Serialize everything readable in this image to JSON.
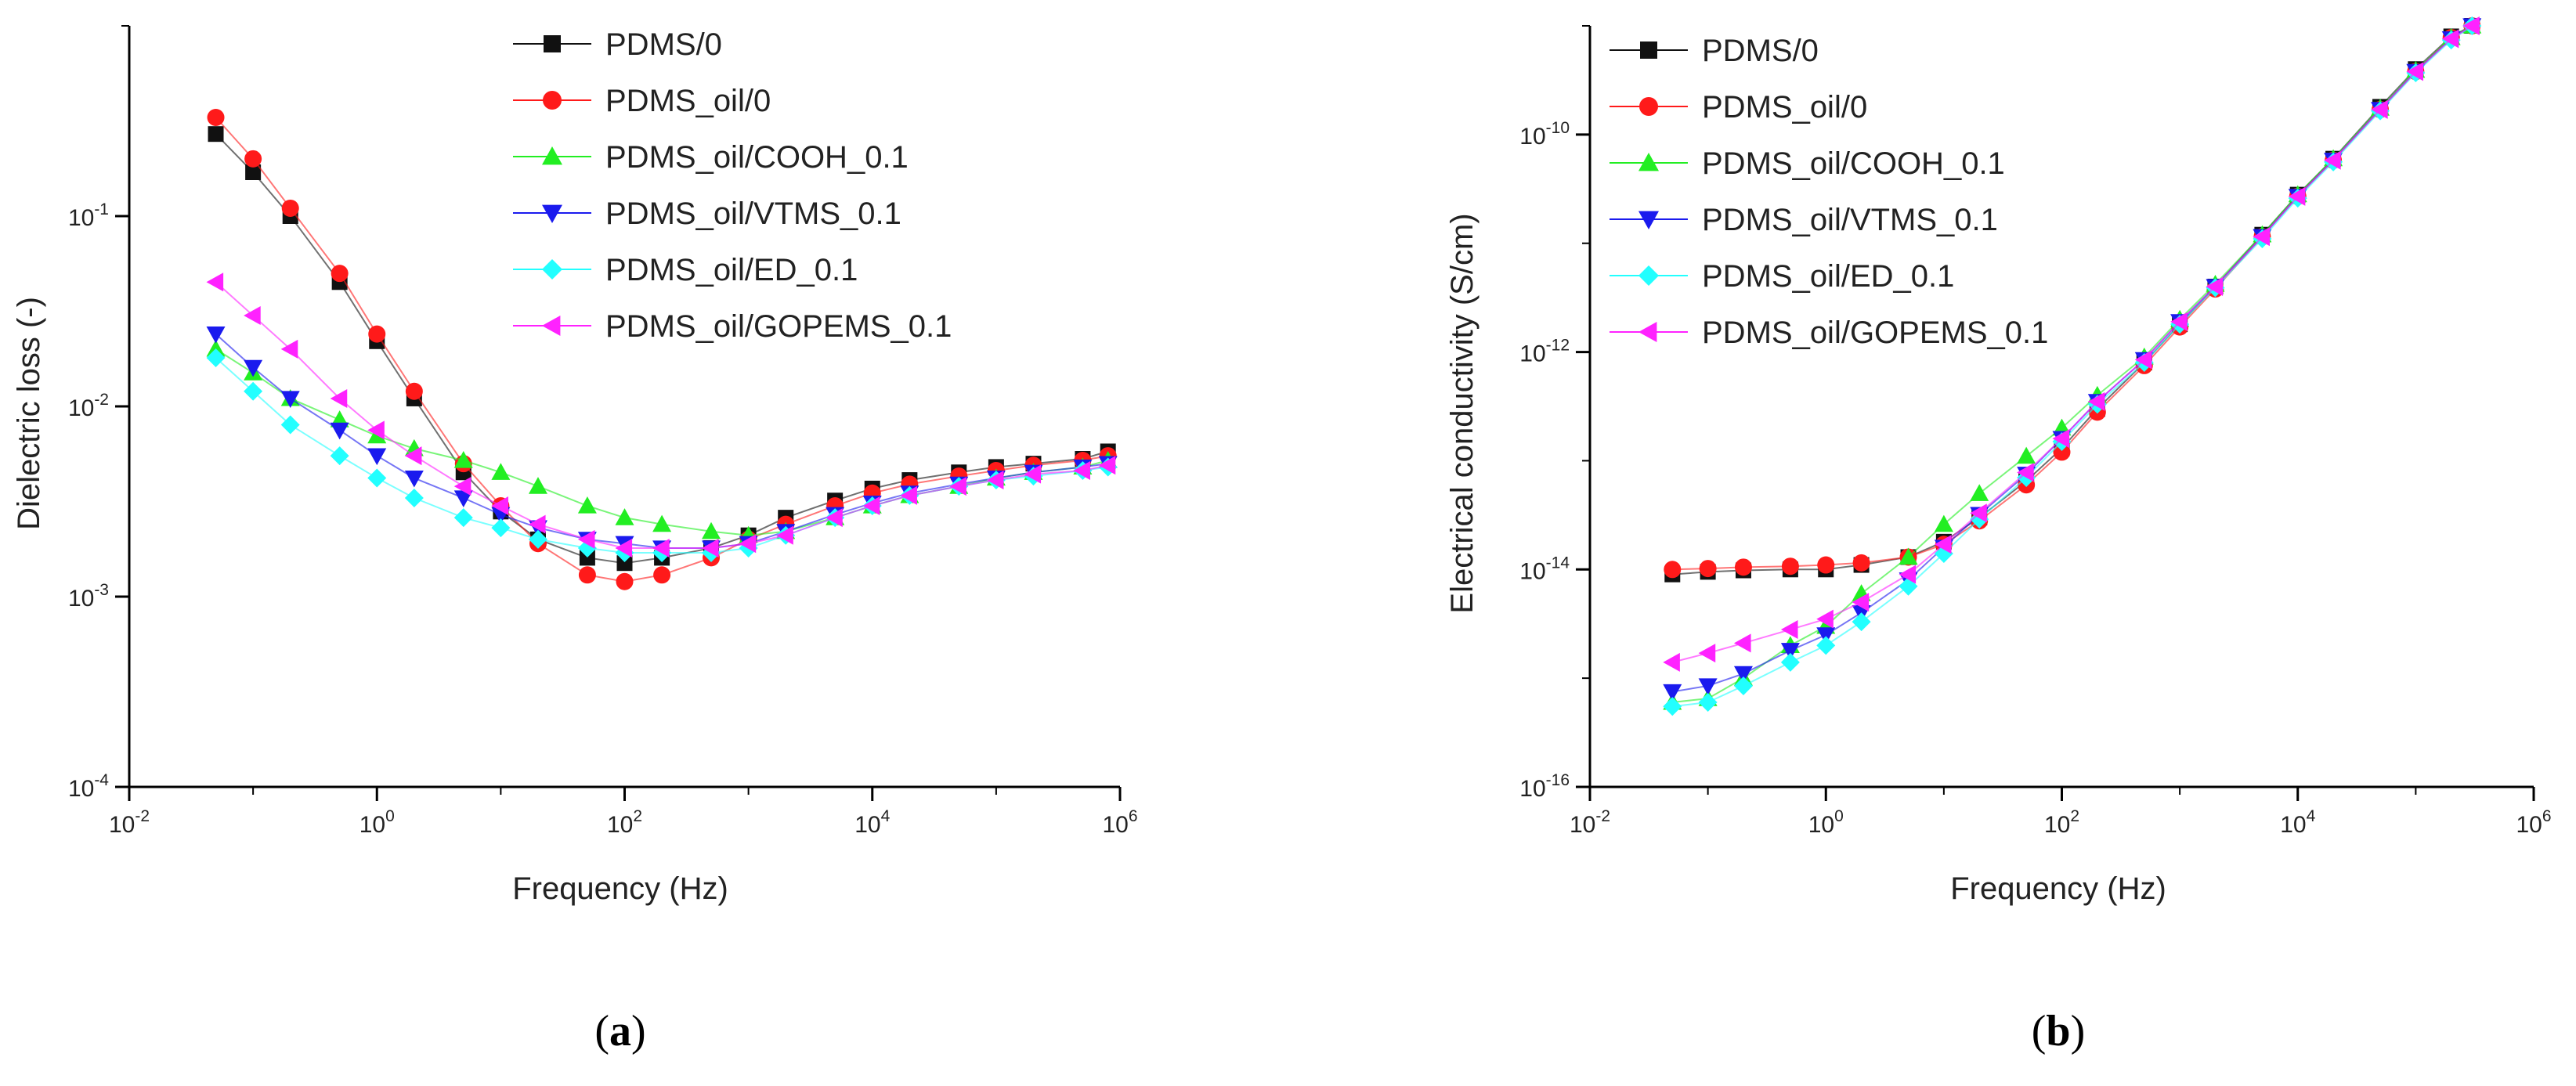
{
  "figure": {
    "captions": [
      "a",
      "b"
    ]
  },
  "colors": {
    "PDMS/0": "#111111",
    "PDMS_oil/0": "#ff1a1a",
    "PDMS_oil/COOH_0.1": "#22ee22",
    "PDMS_oil/VTMS_0.1": "#1a1aee",
    "PDMS_oil/ED_0.1": "#22ffff",
    "PDMS_oil/GOPEMS_0.1": "#ff22ff"
  },
  "markers": {
    "PDMS/0": "square",
    "PDMS_oil/0": "circle",
    "PDMS_oil/COOH_0.1": "triangle-up",
    "PDMS_oil/VTMS_0.1": "triangle-down",
    "PDMS_oil/ED_0.1": "diamond",
    "PDMS_oil/GOPEMS_0.1": "triangle-left"
  },
  "chart_data": [
    {
      "type": "scatter",
      "panel": "a",
      "xlabel": "Frequency (Hz)",
      "ylabel": "Dielectric loss (-)",
      "xscale": "log",
      "yscale": "log",
      "xlim": [
        0.01,
        1000000
      ],
      "ylim": [
        0.0001,
        1
      ],
      "xticks": [
        {
          "base": "10",
          "exp": "-2",
          "value": 0.01
        },
        {
          "base": "10",
          "exp": "0",
          "value": 1
        },
        {
          "base": "10",
          "exp": "2",
          "value": 100
        },
        {
          "base": "10",
          "exp": "4",
          "value": 10000
        },
        {
          "base": "10",
          "exp": "6",
          "value": 1000000
        }
      ],
      "yticks": [
        {
          "base": "10",
          "exp": "-4",
          "value": 0.0001
        },
        {
          "base": "10",
          "exp": "-3",
          "value": 0.001
        },
        {
          "base": "10",
          "exp": "-2",
          "value": 0.01
        },
        {
          "base": "10",
          "exp": "-1",
          "value": 0.1
        }
      ],
      "legend_location": "top-right",
      "series": [
        {
          "name": "PDMS/0",
          "x": [
            0.05,
            0.1,
            0.2,
            0.5,
            1,
            2,
            5,
            10,
            20,
            50,
            100,
            200,
            500,
            1000,
            2000,
            5000,
            10000,
            20000,
            50000,
            100000,
            200000,
            500000,
            800000
          ],
          "y": [
            0.27,
            0.17,
            0.1,
            0.045,
            0.022,
            0.011,
            0.0045,
            0.0028,
            0.002,
            0.0016,
            0.0015,
            0.0016,
            0.0018,
            0.0021,
            0.0026,
            0.0032,
            0.0037,
            0.0041,
            0.0045,
            0.0048,
            0.005,
            0.0053,
            0.0058
          ]
        },
        {
          "name": "PDMS_oil/0",
          "x": [
            0.05,
            0.1,
            0.2,
            0.5,
            1,
            2,
            5,
            10,
            20,
            50,
            100,
            200,
            500,
            1000,
            2000,
            5000,
            10000,
            20000,
            50000,
            100000,
            200000,
            500000,
            800000
          ],
          "y": [
            0.33,
            0.2,
            0.11,
            0.05,
            0.024,
            0.012,
            0.005,
            0.003,
            0.0019,
            0.0013,
            0.0012,
            0.0013,
            0.0016,
            0.002,
            0.0024,
            0.003,
            0.0035,
            0.0039,
            0.0043,
            0.0046,
            0.0049,
            0.0052,
            0.0055
          ]
        },
        {
          "name": "PDMS_oil/COOH_0.1",
          "x": [
            0.05,
            0.1,
            0.2,
            0.5,
            1,
            2,
            5,
            10,
            20,
            50,
            100,
            200,
            500,
            1000,
            2000,
            5000,
            10000,
            20000,
            50000,
            100000,
            200000,
            500000,
            800000
          ],
          "y": [
            0.02,
            0.015,
            0.011,
            0.0085,
            0.007,
            0.006,
            0.0052,
            0.0045,
            0.0038,
            0.003,
            0.0026,
            0.0024,
            0.0022,
            0.0021,
            0.0022,
            0.0026,
            0.003,
            0.0034,
            0.0038,
            0.0042,
            0.0045,
            0.0048,
            0.0052
          ]
        },
        {
          "name": "PDMS_oil/VTMS_0.1",
          "x": [
            0.05,
            0.1,
            0.2,
            0.5,
            1,
            2,
            5,
            10,
            20,
            50,
            100,
            200,
            500,
            1000,
            2000,
            5000,
            10000,
            20000,
            50000,
            100000,
            200000,
            500000,
            800000
          ],
          "y": [
            0.024,
            0.016,
            0.011,
            0.0075,
            0.0055,
            0.0042,
            0.0033,
            0.0027,
            0.0023,
            0.002,
            0.0019,
            0.0018,
            0.0018,
            0.0019,
            0.0022,
            0.0027,
            0.0031,
            0.0035,
            0.0039,
            0.0042,
            0.0045,
            0.0048,
            0.005
          ]
        },
        {
          "name": "PDMS_oil/ED_0.1",
          "x": [
            0.05,
            0.1,
            0.2,
            0.5,
            1,
            2,
            5,
            10,
            20,
            50,
            100,
            200,
            500,
            1000,
            2000,
            5000,
            10000,
            20000,
            50000,
            100000,
            200000,
            500000,
            800000
          ],
          "y": [
            0.018,
            0.012,
            0.008,
            0.0055,
            0.0042,
            0.0033,
            0.0026,
            0.0023,
            0.002,
            0.0018,
            0.0017,
            0.0017,
            0.0017,
            0.0018,
            0.0021,
            0.0026,
            0.003,
            0.0034,
            0.0038,
            0.0041,
            0.0043,
            0.0046,
            0.0048
          ]
        },
        {
          "name": "PDMS_oil/GOPEMS_0.1",
          "x": [
            0.05,
            0.1,
            0.2,
            0.5,
            1,
            2,
            5,
            10,
            20,
            50,
            100,
            200,
            500,
            1000,
            2000,
            5000,
            10000,
            20000,
            50000,
            100000,
            200000,
            500000,
            800000
          ],
          "y": [
            0.045,
            0.03,
            0.02,
            0.011,
            0.0075,
            0.0055,
            0.0038,
            0.003,
            0.0024,
            0.002,
            0.0018,
            0.0018,
            0.0018,
            0.0019,
            0.0021,
            0.0026,
            0.003,
            0.0034,
            0.0038,
            0.0041,
            0.0044,
            0.0046,
            0.0049
          ]
        }
      ]
    },
    {
      "type": "scatter",
      "panel": "b",
      "xlabel": "Frequency (Hz)",
      "ylabel": "Electrical conductivity (S/cm)",
      "xscale": "log",
      "yscale": "log",
      "xlim": [
        0.01,
        1000000
      ],
      "ylim": [
        1e-16,
        1e-09
      ],
      "xticks": [
        {
          "base": "10",
          "exp": "-2",
          "value": 0.01
        },
        {
          "base": "10",
          "exp": "0",
          "value": 1
        },
        {
          "base": "10",
          "exp": "2",
          "value": 100
        },
        {
          "base": "10",
          "exp": "4",
          "value": 10000
        },
        {
          "base": "10",
          "exp": "6",
          "value": 1000000
        }
      ],
      "yticks": [
        {
          "base": "10",
          "exp": "-16",
          "value": 1e-16
        },
        {
          "base": "10",
          "exp": "-14",
          "value": 1e-14
        },
        {
          "base": "10",
          "exp": "-12",
          "value": 1e-12
        },
        {
          "base": "10",
          "exp": "-10",
          "value": 1e-10
        }
      ],
      "legend_location": "top-left",
      "series": [
        {
          "name": "PDMS/0",
          "x": [
            0.05,
            0.1,
            0.2,
            0.5,
            1,
            2,
            5,
            10,
            20,
            50,
            100,
            200,
            500,
            1000,
            2000,
            5000,
            10000,
            20000,
            50000,
            100000,
            200000,
            300000
          ],
          "y": [
            9e-15,
            9.5e-15,
            9.8e-15,
            1e-14,
            1e-14,
            1.1e-14,
            1.3e-14,
            1.8e-14,
            3e-14,
            6.5e-14,
            1.3e-13,
            3e-13,
            8e-13,
            1.8e-12,
            4e-12,
            1.2e-11,
            2.8e-11,
            6e-11,
            1.8e-10,
            4e-10,
            8e-10,
            1e-09
          ]
        },
        {
          "name": "PDMS_oil/0",
          "x": [
            0.05,
            0.1,
            0.2,
            0.5,
            1,
            2,
            5,
            10,
            20,
            50,
            100,
            200,
            500,
            1000,
            2000,
            5000,
            10000,
            20000,
            50000,
            100000,
            200000,
            300000
          ],
          "y": [
            1e-14,
            1.02e-14,
            1.05e-14,
            1.07e-14,
            1.1e-14,
            1.15e-14,
            1.3e-14,
            1.7e-14,
            2.8e-14,
            6e-14,
            1.2e-13,
            2.8e-13,
            7.5e-13,
            1.7e-12,
            3.8e-12,
            1.15e-11,
            2.7e-11,
            5.8e-11,
            1.7e-10,
            3.8e-10,
            7.8e-10,
            1e-09
          ]
        },
        {
          "name": "PDMS_oil/COOH_0.1",
          "x": [
            0.05,
            0.1,
            0.2,
            0.5,
            1,
            2,
            5,
            10,
            20,
            50,
            100,
            200,
            500,
            1000,
            2000,
            5000,
            10000,
            20000,
            50000,
            100000,
            200000,
            300000
          ],
          "y": [
            6e-16,
            6.5e-16,
            1e-15,
            2e-15,
            3e-15,
            6e-15,
            1.3e-14,
            2.6e-14,
            5e-14,
            1.1e-13,
            2e-13,
            4e-13,
            9e-13,
            2e-12,
            4.2e-12,
            1.2e-11,
            2.8e-11,
            6e-11,
            1.75e-10,
            3.9e-10,
            7.8e-10,
            1e-09
          ]
        },
        {
          "name": "PDMS_oil/VTMS_0.1",
          "x": [
            0.05,
            0.1,
            0.2,
            0.5,
            1,
            2,
            5,
            10,
            20,
            50,
            100,
            200,
            500,
            1000,
            2000,
            5000,
            10000,
            20000,
            50000,
            100000,
            200000,
            300000
          ],
          "y": [
            7.5e-16,
            8.5e-16,
            1.1e-15,
            1.8e-15,
            2.5e-15,
            4e-15,
            8e-15,
            1.6e-14,
            3.2e-14,
            7.5e-14,
            1.6e-13,
            3.5e-13,
            8.5e-13,
            1.9e-12,
            4e-12,
            1.15e-11,
            2.7e-11,
            5.8e-11,
            1.7e-10,
            3.8e-10,
            7.6e-10,
            1e-09
          ]
        },
        {
          "name": "PDMS_oil/ED_0.1",
          "x": [
            0.05,
            0.1,
            0.2,
            0.5,
            1,
            2,
            5,
            10,
            20,
            50,
            100,
            200,
            500,
            1000,
            2000,
            5000,
            10000,
            20000,
            50000,
            100000,
            200000,
            300000
          ],
          "y": [
            5.5e-16,
            6e-16,
            8.5e-16,
            1.4e-15,
            2e-15,
            3.3e-15,
            7e-15,
            1.4e-14,
            2.9e-14,
            7e-14,
            1.5e-13,
            3.3e-13,
            8e-13,
            1.8e-12,
            3.9e-12,
            1.1e-11,
            2.6e-11,
            5.6e-11,
            1.65e-10,
            3.7e-10,
            7.4e-10,
            1e-09
          ]
        },
        {
          "name": "PDMS_oil/GOPEMS_0.1",
          "x": [
            0.05,
            0.1,
            0.2,
            0.5,
            1,
            2,
            5,
            10,
            20,
            50,
            100,
            200,
            500,
            1000,
            2000,
            5000,
            10000,
            20000,
            50000,
            100000,
            200000,
            300000
          ],
          "y": [
            1.4e-15,
            1.7e-15,
            2.1e-15,
            2.8e-15,
            3.5e-15,
            5e-15,
            9e-15,
            1.7e-14,
            3.3e-14,
            7.8e-14,
            1.6e-13,
            3.5e-13,
            8.5e-13,
            1.9e-12,
            4e-12,
            1.15e-11,
            2.7e-11,
            5.8e-11,
            1.7e-10,
            3.8e-10,
            7.6e-10,
            1e-09
          ]
        }
      ]
    }
  ]
}
